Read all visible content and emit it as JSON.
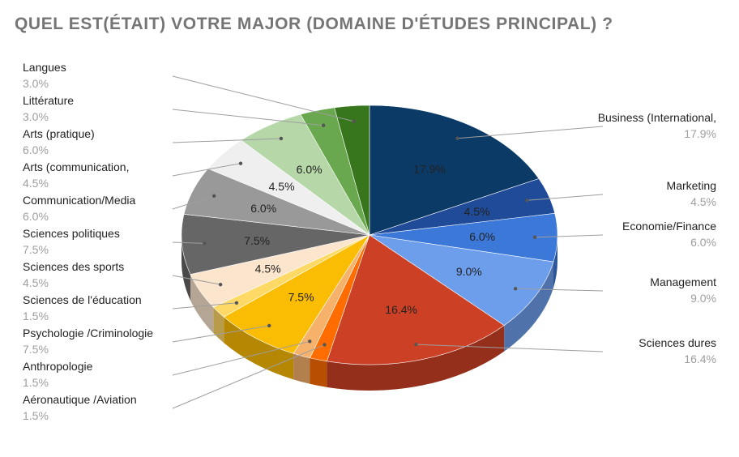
{
  "chart_data": {
    "type": "pie",
    "title": "QUEL EST(ÉTAIT) VOTRE MAJOR (DOMAINE D'ÉTUDES PRINCIPAL) ?",
    "style": "3d",
    "legend": "none",
    "slices": [
      {
        "label": "Business (International,",
        "value": 17.9,
        "value_label": "17.9%",
        "color": "#0b3a66"
      },
      {
        "label": "Marketing",
        "value": 4.5,
        "value_label": "4.5%",
        "color": "#1f4b99"
      },
      {
        "label": "Economie/Finance",
        "value": 6.0,
        "value_label": "6.0%",
        "color": "#3c78d8"
      },
      {
        "label": "Management",
        "value": 9.0,
        "value_label": "9.0%",
        "color": "#6d9eeb"
      },
      {
        "label": "Sciences dures",
        "value": 16.4,
        "value_label": "16.4%",
        "color": "#cc4125"
      },
      {
        "label": "Aéronautique /Aviation",
        "value": 1.5,
        "value_label": "1.5%",
        "color": "#ff6d01"
      },
      {
        "label": "Anthropologie",
        "value": 1.5,
        "value_label": "1.5%",
        "color": "#f6b26b"
      },
      {
        "label": "Psychologie /Criminologie",
        "value": 7.5,
        "value_label": "7.5%",
        "color": "#fbbc04"
      },
      {
        "label": "Sciences de l'éducation",
        "value": 1.5,
        "value_label": "1.5%",
        "color": "#ffd966"
      },
      {
        "label": "Sciences des sports",
        "value": 4.5,
        "value_label": "4.5%",
        "color": "#fce5cd"
      },
      {
        "label": "Sciences politiques",
        "value": 7.5,
        "value_label": "7.5%",
        "color": "#666666"
      },
      {
        "label": "Communication/Media",
        "value": 6.0,
        "value_label": "6.0%",
        "color": "#999999"
      },
      {
        "label": "Arts (communication,",
        "value": 4.5,
        "value_label": "4.5%",
        "color": "#efefef"
      },
      {
        "label": "Arts (pratique)",
        "value": 6.0,
        "value_label": "6.0%",
        "color": "#b6d7a8"
      },
      {
        "label": "Littérature",
        "value": 3.0,
        "value_label": "3.0%",
        "color": "#6aa84f"
      },
      {
        "label": "Langues",
        "value": 3.0,
        "value_label": "3.0%",
        "color": "#38761d"
      }
    ]
  }
}
